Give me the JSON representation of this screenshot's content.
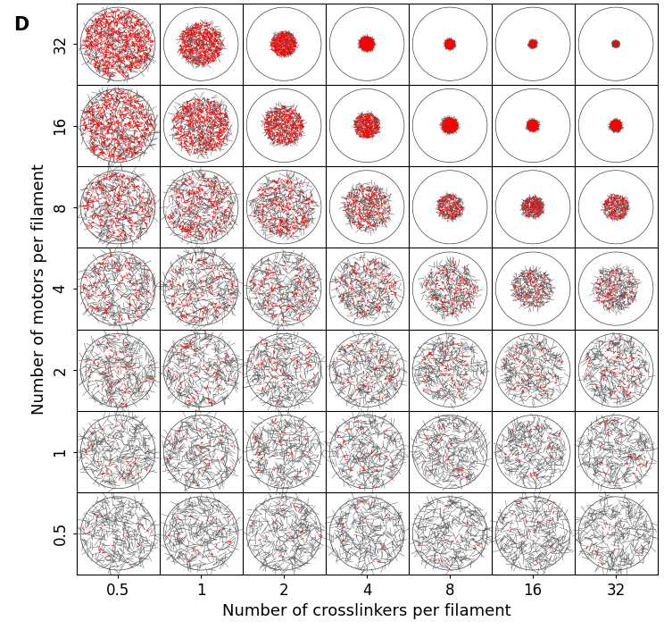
{
  "chart_data": {
    "type": "image_grid",
    "panel_label": "D",
    "xlabel": "Number of crosslinkers per filament",
    "ylabel": "Number of motors per filament",
    "x_categories": [
      0.5,
      1,
      2,
      4,
      8,
      16,
      32
    ],
    "y_categories": [
      0.5,
      1,
      2,
      4,
      8,
      16,
      32
    ],
    "cells": [
      [
        1.0,
        1.0,
        1.0,
        1.0,
        1.0,
        1.0,
        1.0
      ],
      [
        1.0,
        1.0,
        1.0,
        1.0,
        0.95,
        0.9,
        0.95
      ],
      [
        1.0,
        1.0,
        1.0,
        0.95,
        0.9,
        0.85,
        0.9
      ],
      [
        1.0,
        1.0,
        0.95,
        0.85,
        0.75,
        0.55,
        0.6
      ],
      [
        1.0,
        0.95,
        0.85,
        0.65,
        0.35,
        0.3,
        0.35
      ],
      [
        1.0,
        0.8,
        0.55,
        0.35,
        0.22,
        0.15,
        0.15
      ],
      [
        0.95,
        0.6,
        0.35,
        0.2,
        0.12,
        0.08,
        0.05
      ]
    ],
    "grid": true
  }
}
